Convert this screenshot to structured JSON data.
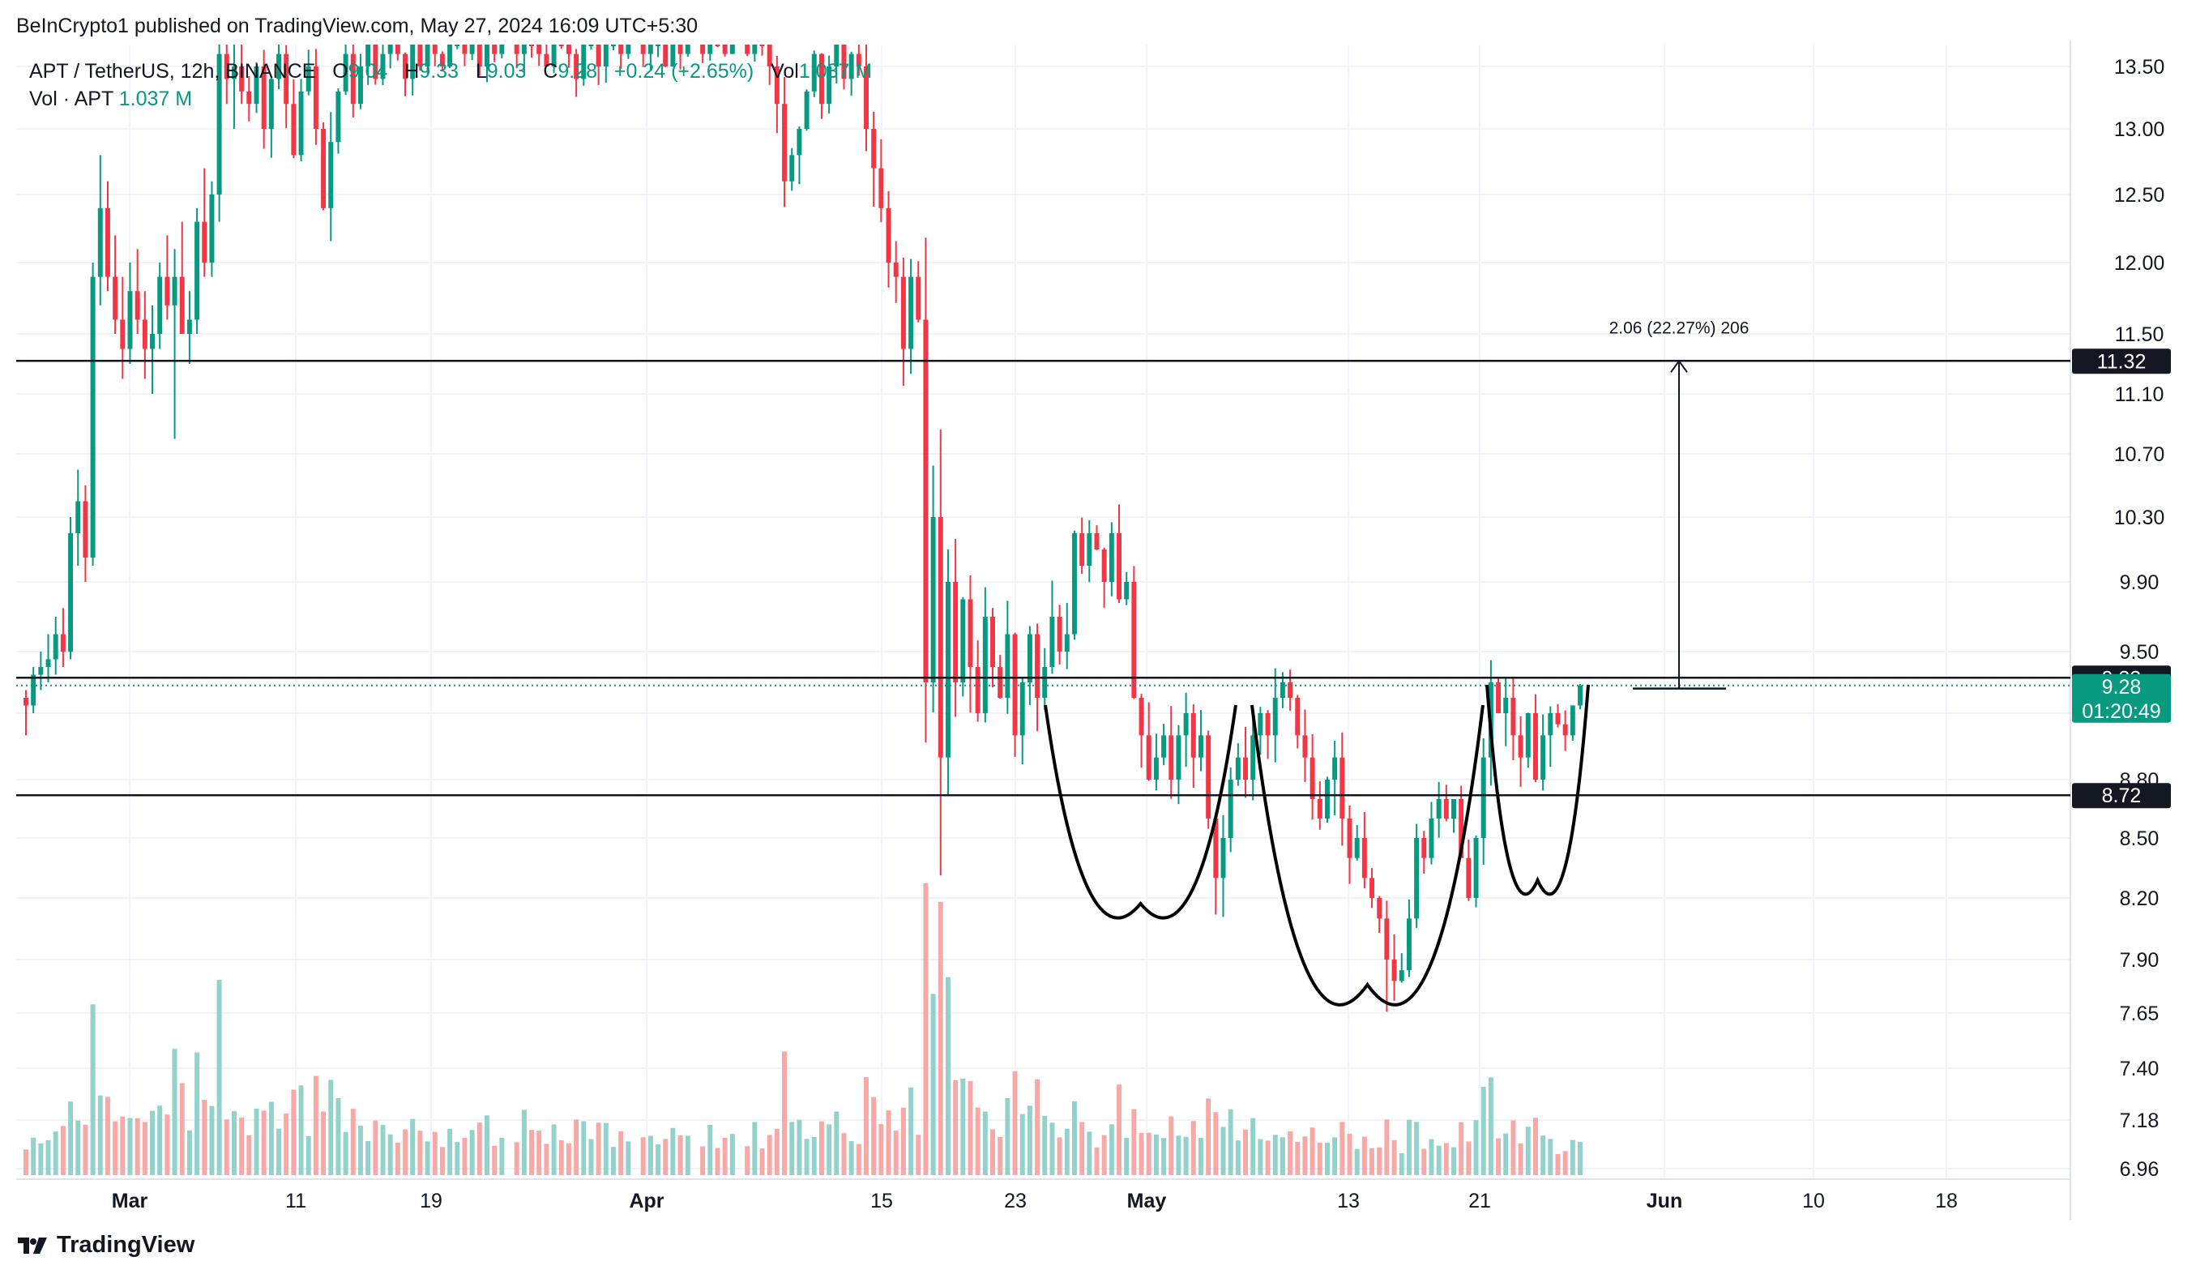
{
  "header": {
    "published": "BeInCrypto1 published on TradingView.com, May 27, 2024 16:09 UTC+5:30"
  },
  "legend": {
    "symbol": "APT / TetherUS, 12h, BINANCE",
    "o_label": "O",
    "o_value": "9.04",
    "h_label": "H",
    "h_value": "9.33",
    "l_label": "L",
    "l_value": "9.03",
    "c_label": "C",
    "c_value": "9.28",
    "change": "+0.24 (+2.65%)",
    "vol_label": "Vol",
    "vol_value": "1.037 M",
    "vol_row_label": "Vol · APT",
    "vol_row_value": "1.037 M"
  },
  "brand": {
    "name": "TradingView"
  },
  "colors": {
    "up": "#089981",
    "down": "#f23645",
    "up_vol": "#92d2cb",
    "down_vol": "#f7a9a7",
    "grid": "#f0f3fa"
  },
  "chart_data": {
    "type": "candlestick",
    "symbol": "APT / TetherUS",
    "interval": "12h",
    "exchange": "BINANCE",
    "y_ticks": [
      "13.50",
      "13.00",
      "12.50",
      "12.00",
      "11.50",
      "11.10",
      "10.70",
      "10.30",
      "9.90",
      "9.50",
      "9.10",
      "8.80",
      "8.50",
      "8.20",
      "7.90",
      "7.65",
      "7.40",
      "7.18",
      "6.96"
    ],
    "x_ticks": [
      "Mar",
      "11",
      "19",
      "Apr",
      "15",
      "23",
      "May",
      "13",
      "21",
      "Jun",
      "10",
      "18"
    ],
    "price_levels": [
      {
        "label": "11.32",
        "value": 11.32
      },
      {
        "label": "9.33",
        "value": 9.33
      },
      {
        "label": "8.72",
        "value": 8.72
      }
    ],
    "last_price": {
      "label": "9.28",
      "countdown": "01:20:49"
    },
    "measure": {
      "label": "2.06 (22.27%) 206",
      "from": 9.26,
      "to": 11.32
    },
    "pattern": "inverse head and shoulders",
    "ohlc_approx": [
      [
        9.2,
        9.25,
        9.0,
        9.15
      ],
      [
        9.15,
        9.4,
        9.1,
        9.35
      ],
      [
        9.35,
        9.5,
        9.25,
        9.4
      ],
      [
        9.4,
        9.6,
        9.3,
        9.45
      ],
      [
        9.45,
        9.7,
        9.35,
        9.6
      ],
      [
        9.6,
        9.75,
        9.4,
        9.5
      ],
      [
        9.5,
        10.3,
        9.45,
        10.2
      ],
      [
        10.2,
        10.6,
        10.0,
        10.4
      ],
      [
        10.4,
        10.5,
        9.9,
        10.05
      ],
      [
        10.05,
        12.0,
        10.0,
        11.9
      ],
      [
        11.9,
        12.8,
        11.7,
        12.4
      ],
      [
        12.4,
        12.6,
        11.8,
        11.9
      ],
      [
        11.9,
        12.2,
        11.5,
        11.6
      ],
      [
        11.6,
        11.9,
        11.2,
        11.4
      ],
      [
        11.4,
        12.0,
        11.3,
        11.8
      ],
      [
        11.8,
        12.1,
        11.5,
        11.6
      ],
      [
        11.6,
        11.8,
        11.2,
        11.4
      ],
      [
        11.4,
        11.7,
        11.1,
        11.5
      ],
      [
        11.5,
        12.0,
        11.4,
        11.9
      ],
      [
        11.9,
        12.2,
        11.6,
        11.7
      ],
      [
        11.7,
        12.1,
        10.8,
        11.9
      ],
      [
        11.9,
        12.3,
        11.5,
        11.5
      ],
      [
        11.5,
        11.8,
        11.3,
        11.6
      ],
      [
        11.6,
        12.4,
        11.5,
        12.3
      ],
      [
        12.3,
        12.7,
        11.9,
        12.0
      ],
      [
        12.0,
        12.6,
        11.9,
        12.5
      ],
      [
        12.5,
        13.8,
        12.3,
        13.6
      ],
      [
        13.6,
        13.9,
        13.2,
        13.4
      ],
      [
        13.4,
        13.7,
        13.0,
        13.5
      ],
      [
        13.5,
        13.8,
        13.2,
        13.3
      ]
    ]
  }
}
